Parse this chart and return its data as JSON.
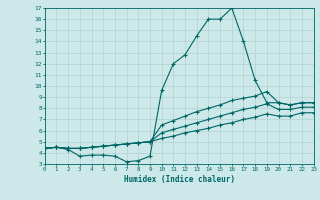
{
  "xlabel": "Humidex (Indice chaleur)",
  "bg_color": "#cce8e8",
  "line_color": "#006666",
  "grid_color": "#aacccc",
  "ylim": [
    3,
    17
  ],
  "xlim": [
    0,
    23
  ],
  "yticks": [
    3,
    4,
    5,
    6,
    7,
    8,
    9,
    10,
    11,
    12,
    13,
    14,
    15,
    16,
    17
  ],
  "xticks": [
    0,
    1,
    2,
    3,
    4,
    5,
    6,
    7,
    8,
    9,
    10,
    11,
    12,
    13,
    14,
    15,
    16,
    17,
    18,
    19,
    20,
    21,
    22,
    23
  ],
  "line1_x": [
    0,
    1,
    2,
    3,
    4,
    5,
    6,
    7,
    8,
    9,
    10,
    11,
    12,
    13,
    14,
    15,
    16,
    17,
    18,
    19,
    20,
    21,
    22,
    23
  ],
  "line1_y": [
    4.4,
    4.5,
    4.3,
    3.7,
    3.8,
    3.8,
    3.7,
    3.2,
    3.3,
    3.7,
    9.6,
    12.0,
    12.8,
    14.5,
    16.0,
    16.0,
    17.0,
    14.0,
    10.5,
    8.5,
    8.5,
    8.3,
    8.5,
    8.5
  ],
  "line2_x": [
    0,
    1,
    2,
    3,
    4,
    5,
    6,
    7,
    8,
    9,
    10,
    11,
    12,
    13,
    14,
    15,
    16,
    17,
    18,
    19,
    20,
    21,
    22,
    23
  ],
  "line2_y": [
    4.4,
    4.5,
    4.4,
    4.4,
    4.5,
    4.6,
    4.7,
    4.8,
    4.9,
    5.0,
    6.5,
    6.9,
    7.3,
    7.7,
    8.0,
    8.3,
    8.7,
    8.9,
    9.1,
    9.5,
    8.5,
    8.3,
    8.5,
    8.5
  ],
  "line3_x": [
    0,
    1,
    2,
    3,
    4,
    5,
    6,
    7,
    8,
    9,
    10,
    11,
    12,
    13,
    14,
    15,
    16,
    17,
    18,
    19,
    20,
    21,
    22,
    23
  ],
  "line3_y": [
    4.4,
    4.5,
    4.4,
    4.4,
    4.5,
    4.6,
    4.7,
    4.8,
    4.9,
    5.0,
    5.8,
    6.1,
    6.4,
    6.7,
    7.0,
    7.3,
    7.6,
    7.9,
    8.1,
    8.4,
    7.9,
    7.9,
    8.1,
    8.1
  ],
  "line4_x": [
    0,
    1,
    2,
    3,
    4,
    5,
    6,
    7,
    8,
    9,
    10,
    11,
    12,
    13,
    14,
    15,
    16,
    17,
    18,
    19,
    20,
    21,
    22,
    23
  ],
  "line4_y": [
    4.4,
    4.5,
    4.4,
    4.4,
    4.5,
    4.6,
    4.7,
    4.8,
    4.9,
    5.0,
    5.3,
    5.5,
    5.8,
    6.0,
    6.2,
    6.5,
    6.7,
    7.0,
    7.2,
    7.5,
    7.3,
    7.3,
    7.6,
    7.6
  ]
}
